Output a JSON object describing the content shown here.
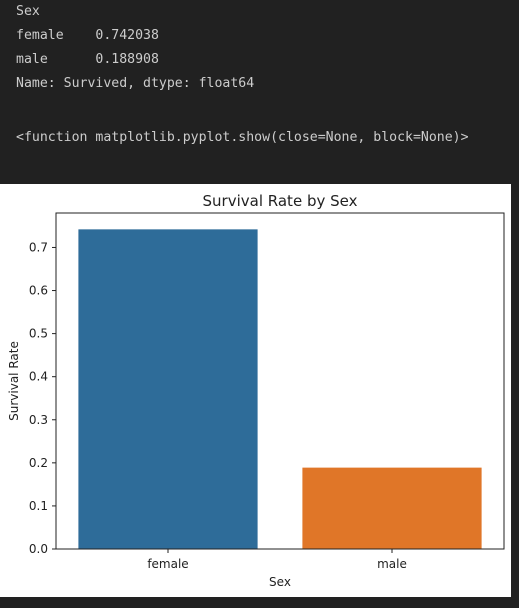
{
  "output": {
    "lines": [
      "Sex",
      "female    0.742038",
      "male      0.188908",
      "Name: Survived, dtype: float64",
      "",
      "<function matplotlib.pyplot.show(close=None, block=None)>"
    ]
  },
  "chart_data": {
    "type": "bar",
    "title": "Survival Rate by Sex",
    "xlabel": "Sex",
    "ylabel": "Survival Rate",
    "categories": [
      "female",
      "male"
    ],
    "values": [
      0.742038,
      0.188908
    ],
    "colors": [
      "#2e6c99",
      "#e07628"
    ],
    "ylim": [
      0,
      0.78
    ],
    "yticks": [
      0.0,
      0.1,
      0.2,
      0.3,
      0.4,
      0.5,
      0.6,
      0.7
    ],
    "ytick_labels": [
      "0.0",
      "0.1",
      "0.2",
      "0.3",
      "0.4",
      "0.5",
      "0.6",
      "0.7"
    ],
    "grid": false,
    "legend": "none"
  }
}
